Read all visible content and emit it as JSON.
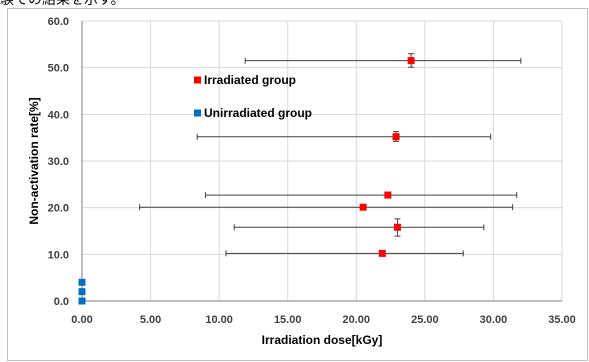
{
  "header_text": "験での結果を示す。",
  "chart_data": {
    "type": "scatter",
    "xlabel": "Irradiation dose[kGy]",
    "ylabel": "Non-activation rate[%]",
    "xlim": [
      0,
      35
    ],
    "ylim": [
      0,
      60
    ],
    "x_ticks": [
      "0.00",
      "5.00",
      "10.00",
      "15.00",
      "20.00",
      "25.00",
      "30.00",
      "35.00"
    ],
    "y_ticks": [
      "0.0",
      "10.0",
      "20.0",
      "30.0",
      "40.0",
      "50.0",
      "60.0"
    ],
    "grid": true,
    "legend_position": "upper-left inside",
    "series": [
      {
        "name": "Irradiated group",
        "color": "#ff0000",
        "points": [
          {
            "x": 24.0,
            "y": 51.5,
            "xerr": [
              11.9,
              32.0
            ],
            "yerr": [
              50.1,
              53.0
            ]
          },
          {
            "x": 22.9,
            "y": 35.2,
            "xerr": [
              8.4,
              29.8
            ],
            "yerr": [
              34.2,
              36.3
            ]
          },
          {
            "x": 22.3,
            "y": 22.7,
            "xerr": [
              9.0,
              31.7
            ],
            "yerr": [
              22.2,
              23.3
            ]
          },
          {
            "x": 20.5,
            "y": 20.1,
            "xerr": [
              4.2,
              31.4
            ],
            "yerr": [
              20.1,
              20.1
            ]
          },
          {
            "x": 23.0,
            "y": 15.8,
            "xerr": [
              11.1,
              29.3
            ],
            "yerr": [
              13.9,
              17.6
            ]
          },
          {
            "x": 21.9,
            "y": 10.2,
            "xerr": [
              10.5,
              27.8
            ],
            "yerr": [
              10.2,
              10.2
            ]
          }
        ]
      },
      {
        "name": "Unirradiated group",
        "color": "#0070c0",
        "points": [
          {
            "x": 0.0,
            "y": 4.0
          },
          {
            "x": 0.0,
            "y": 2.0
          },
          {
            "x": 0.0,
            "y": 0.0
          }
        ]
      }
    ]
  }
}
